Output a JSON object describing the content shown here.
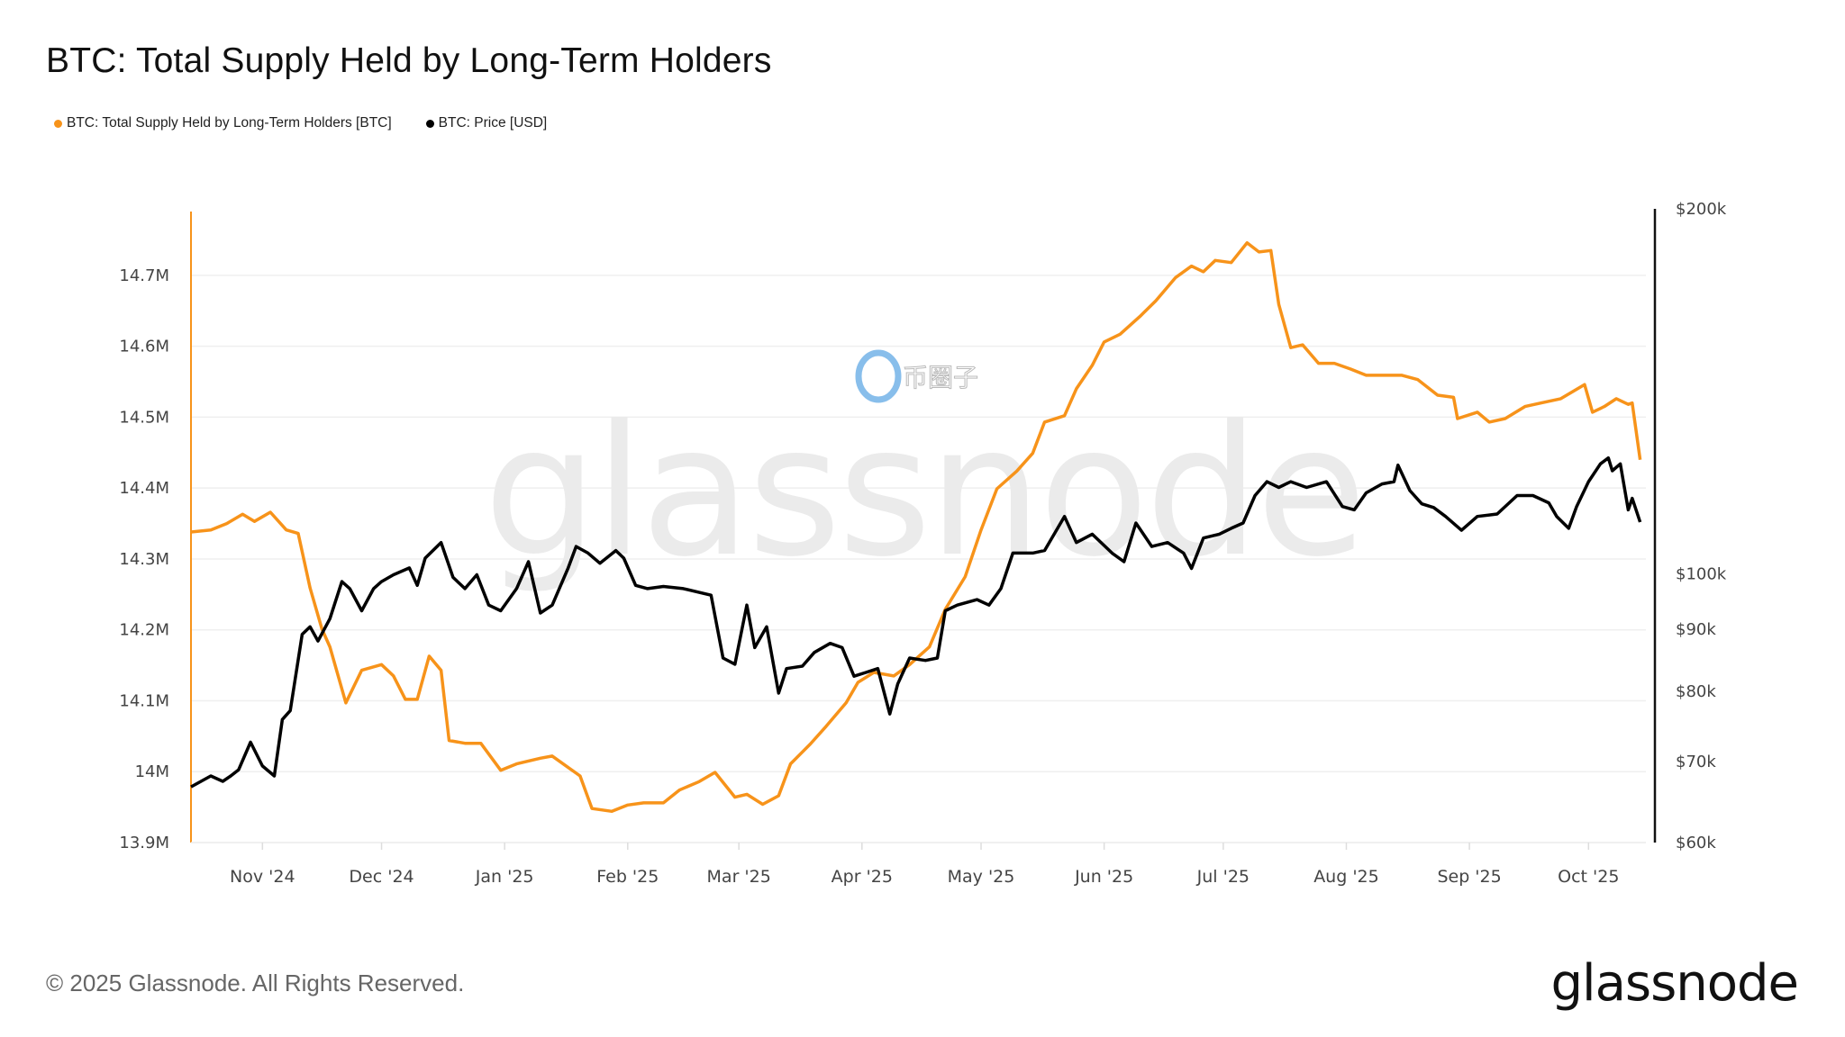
{
  "title": "BTC: Total Supply Held by Long-Term Holders",
  "legend": [
    {
      "label": "BTC: Total Supply Held by Long-Term Holders [BTC]",
      "color": "#F7931A"
    },
    {
      "label": "BTC: Price [USD]",
      "color": "#000000"
    }
  ],
  "footer": {
    "copyright": "© 2025 Glassnode. All Rights Reserved.",
    "logo": "glassnode"
  },
  "watermarks": {
    "main": "glassnode",
    "secondary": "币圈子"
  },
  "chart_data": {
    "type": "line",
    "title": "BTC: Total Supply Held by Long-Term Holders",
    "xlim": [
      "2024-10-14",
      "2025-10-15"
    ],
    "x_ticks": [
      "Nov '24",
      "Dec '24",
      "Jan '25",
      "Feb '25",
      "Mar '25",
      "Apr '25",
      "May '25",
      "Jun '25",
      "Jul '25",
      "Aug '25",
      "Sep '25",
      "Oct '25"
    ],
    "y_left": {
      "ticks": [
        "13.9M",
        "14M",
        "14.1M",
        "14.2M",
        "14.3M",
        "14.4M",
        "14.5M",
        "14.6M",
        "14.7M"
      ],
      "tick_values": [
        13.9,
        14.0,
        14.1,
        14.2,
        14.3,
        14.4,
        14.5,
        14.6,
        14.7
      ],
      "ylim": [
        13.9,
        14.79
      ],
      "unit": "M BTC",
      "scale": "linear"
    },
    "y_right": {
      "ticks": [
        "$60k",
        "$70k",
        "$80k",
        "$90k",
        "$100k",
        "$200k"
      ],
      "tick_values": [
        60,
        70,
        80,
        90,
        100,
        200
      ],
      "ylim": [
        60,
        200
      ],
      "unit": "k USD",
      "scale": "log"
    },
    "grid": true,
    "legend_position": "top-left",
    "series": [
      {
        "name": "BTC: Total Supply Held by Long-Term Holders [BTC]",
        "axis": "left",
        "color": "#F7931A",
        "points": [
          [
            "2024-10-14",
            14.338
          ],
          [
            "2024-10-19",
            14.341
          ],
          [
            "2024-10-23",
            14.35
          ],
          [
            "2024-10-27",
            14.363
          ],
          [
            "2024-10-30",
            14.353
          ],
          [
            "2024-11-03",
            14.366
          ],
          [
            "2024-11-07",
            14.341
          ],
          [
            "2024-11-10",
            14.336
          ],
          [
            "2024-11-13",
            14.259
          ],
          [
            "2024-11-16",
            14.201
          ],
          [
            "2024-11-18",
            14.176
          ],
          [
            "2024-11-22",
            14.097
          ],
          [
            "2024-11-26",
            14.143
          ],
          [
            "2024-12-01",
            14.151
          ],
          [
            "2024-12-04",
            14.135
          ],
          [
            "2024-12-07",
            14.102
          ],
          [
            "2024-12-10",
            14.102
          ],
          [
            "2024-12-13",
            14.163
          ],
          [
            "2024-12-16",
            14.143
          ],
          [
            "2024-12-18",
            14.044
          ],
          [
            "2024-12-22",
            14.04
          ],
          [
            "2024-12-26",
            14.04
          ],
          [
            "2024-12-31",
            14.002
          ],
          [
            "2025-01-04",
            14.011
          ],
          [
            "2025-01-10",
            14.019
          ],
          [
            "2025-01-13",
            14.022
          ],
          [
            "2025-01-16",
            14.01
          ],
          [
            "2025-01-20",
            13.994
          ],
          [
            "2025-01-23",
            13.948
          ],
          [
            "2025-01-28",
            13.944
          ],
          [
            "2025-02-01",
            13.953
          ],
          [
            "2025-02-05",
            13.956
          ],
          [
            "2025-02-10",
            13.956
          ],
          [
            "2025-02-14",
            13.974
          ],
          [
            "2025-02-19",
            13.986
          ],
          [
            "2025-02-23",
            13.999
          ],
          [
            "2025-02-28",
            13.964
          ],
          [
            "2025-03-03",
            13.968
          ],
          [
            "2025-03-07",
            13.954
          ],
          [
            "2025-03-11",
            13.966
          ],
          [
            "2025-03-14",
            14.011
          ],
          [
            "2025-03-19",
            14.039
          ],
          [
            "2025-03-23",
            14.064
          ],
          [
            "2025-03-28",
            14.097
          ],
          [
            "2025-03-31",
            14.126
          ],
          [
            "2025-04-04",
            14.14
          ],
          [
            "2025-04-09",
            14.135
          ],
          [
            "2025-04-13",
            14.151
          ],
          [
            "2025-04-18",
            14.176
          ],
          [
            "2025-04-22",
            14.229
          ],
          [
            "2025-04-27",
            14.275
          ],
          [
            "2025-05-01",
            14.341
          ],
          [
            "2025-05-05",
            14.399
          ],
          [
            "2025-05-10",
            14.424
          ],
          [
            "2025-05-14",
            14.449
          ],
          [
            "2025-05-17",
            14.493
          ],
          [
            "2025-05-22",
            14.502
          ],
          [
            "2025-05-25",
            14.54
          ],
          [
            "2025-05-29",
            14.573
          ],
          [
            "2025-06-01",
            14.606
          ],
          [
            "2025-06-05",
            14.617
          ],
          [
            "2025-06-10",
            14.642
          ],
          [
            "2025-06-14",
            14.664
          ],
          [
            "2025-06-19",
            14.697
          ],
          [
            "2025-06-23",
            14.713
          ],
          [
            "2025-06-26",
            14.705
          ],
          [
            "2025-06-29",
            14.721
          ],
          [
            "2025-07-03",
            14.718
          ],
          [
            "2025-07-07",
            14.746
          ],
          [
            "2025-07-10",
            14.733
          ],
          [
            "2025-07-13",
            14.735
          ],
          [
            "2025-07-15",
            14.659
          ],
          [
            "2025-07-18",
            14.598
          ],
          [
            "2025-07-21",
            14.602
          ],
          [
            "2025-07-25",
            14.576
          ],
          [
            "2025-07-29",
            14.576
          ],
          [
            "2025-08-02",
            14.568
          ],
          [
            "2025-08-06",
            14.559
          ],
          [
            "2025-08-10",
            14.559
          ],
          [
            "2025-08-15",
            14.559
          ],
          [
            "2025-08-19",
            14.553
          ],
          [
            "2025-08-24",
            14.531
          ],
          [
            "2025-08-28",
            14.528
          ],
          [
            "2025-08-29",
            14.498
          ],
          [
            "2025-09-03",
            14.507
          ],
          [
            "2025-09-06",
            14.493
          ],
          [
            "2025-09-10",
            14.498
          ],
          [
            "2025-09-15",
            14.515
          ],
          [
            "2025-09-19",
            14.52
          ],
          [
            "2025-09-24",
            14.526
          ],
          [
            "2025-09-30",
            14.546
          ],
          [
            "2025-10-02",
            14.507
          ],
          [
            "2025-10-05",
            14.515
          ],
          [
            "2025-10-08",
            14.526
          ],
          [
            "2025-10-11",
            14.518
          ],
          [
            "2025-10-12",
            14.52
          ],
          [
            "2025-10-14",
            14.44
          ]
        ]
      },
      {
        "name": "BTC: Price [USD]",
        "axis": "right",
        "color": "#000000",
        "points": [
          [
            "2024-10-14",
            66.7
          ],
          [
            "2024-10-19",
            68.1
          ],
          [
            "2024-10-22",
            67.4
          ],
          [
            "2024-10-24",
            68.1
          ],
          [
            "2024-10-26",
            68.9
          ],
          [
            "2024-10-29",
            72.6
          ],
          [
            "2024-11-01",
            69.4
          ],
          [
            "2024-11-04",
            68.1
          ],
          [
            "2024-11-06",
            75.8
          ],
          [
            "2024-11-08",
            77.1
          ],
          [
            "2024-11-11",
            89.1
          ],
          [
            "2024-11-13",
            90.4
          ],
          [
            "2024-11-15",
            88.0
          ],
          [
            "2024-11-18",
            91.8
          ],
          [
            "2024-11-21",
            98.5
          ],
          [
            "2024-11-23",
            97.2
          ],
          [
            "2024-11-26",
            93.2
          ],
          [
            "2024-11-29",
            97.2
          ],
          [
            "2024-12-01",
            98.5
          ],
          [
            "2024-12-04",
            99.8
          ],
          [
            "2024-12-08",
            101.1
          ],
          [
            "2024-12-10",
            97.8
          ],
          [
            "2024-12-12",
            103.0
          ],
          [
            "2024-12-16",
            106.1
          ],
          [
            "2024-12-19",
            99.3
          ],
          [
            "2024-12-22",
            97.2
          ],
          [
            "2024-12-25",
            99.8
          ],
          [
            "2024-12-28",
            94.2
          ],
          [
            "2024-12-31",
            93.2
          ],
          [
            "2025-01-04",
            97.2
          ],
          [
            "2025-01-07",
            102.3
          ],
          [
            "2025-01-10",
            92.8
          ],
          [
            "2025-01-13",
            94.2
          ],
          [
            "2025-01-17",
            101.1
          ],
          [
            "2025-01-19",
            105.3
          ],
          [
            "2025-01-22",
            104.0
          ],
          [
            "2025-01-25",
            102.0
          ],
          [
            "2025-01-29",
            104.5
          ],
          [
            "2025-01-31",
            103.0
          ],
          [
            "2025-02-03",
            97.8
          ],
          [
            "2025-02-06",
            97.2
          ],
          [
            "2025-02-10",
            97.6
          ],
          [
            "2025-02-15",
            97.2
          ],
          [
            "2025-02-19",
            96.5
          ],
          [
            "2025-02-22",
            96.0
          ],
          [
            "2025-02-25",
            85.2
          ],
          [
            "2025-02-28",
            84.2
          ],
          [
            "2025-03-03",
            94.2
          ],
          [
            "2025-03-05",
            86.9
          ],
          [
            "2025-03-08",
            90.4
          ],
          [
            "2025-03-11",
            79.7
          ],
          [
            "2025-03-13",
            83.5
          ],
          [
            "2025-03-17",
            83.9
          ],
          [
            "2025-03-20",
            86.1
          ],
          [
            "2025-03-24",
            87.6
          ],
          [
            "2025-03-27",
            86.9
          ],
          [
            "2025-03-30",
            82.3
          ],
          [
            "2025-04-02",
            82.9
          ],
          [
            "2025-04-05",
            83.5
          ],
          [
            "2025-04-08",
            76.6
          ],
          [
            "2025-04-10",
            81.1
          ],
          [
            "2025-04-13",
            85.2
          ],
          [
            "2025-04-17",
            84.8
          ],
          [
            "2025-04-20",
            85.2
          ],
          [
            "2025-04-22",
            93.2
          ],
          [
            "2025-04-25",
            94.2
          ],
          [
            "2025-04-30",
            95.2
          ],
          [
            "2025-05-03",
            94.2
          ],
          [
            "2025-05-06",
            97.2
          ],
          [
            "2025-05-09",
            104.0
          ],
          [
            "2025-05-14",
            104.0
          ],
          [
            "2025-05-17",
            104.5
          ],
          [
            "2025-05-22",
            111.5
          ],
          [
            "2025-05-25",
            106.1
          ],
          [
            "2025-05-29",
            107.8
          ],
          [
            "2025-06-03",
            104.0
          ],
          [
            "2025-06-06",
            102.3
          ],
          [
            "2025-06-09",
            110.1
          ],
          [
            "2025-06-13",
            105.3
          ],
          [
            "2025-06-17",
            106.1
          ],
          [
            "2025-06-21",
            104.0
          ],
          [
            "2025-06-23",
            101.0
          ],
          [
            "2025-06-26",
            107.0
          ],
          [
            "2025-06-30",
            107.8
          ],
          [
            "2025-07-03",
            109.0
          ],
          [
            "2025-07-06",
            110.1
          ],
          [
            "2025-07-09",
            116.0
          ],
          [
            "2025-07-12",
            119.1
          ],
          [
            "2025-07-15",
            117.8
          ],
          [
            "2025-07-18",
            119.1
          ],
          [
            "2025-07-22",
            117.8
          ],
          [
            "2025-07-27",
            119.1
          ],
          [
            "2025-07-31",
            113.6
          ],
          [
            "2025-08-03",
            112.9
          ],
          [
            "2025-08-06",
            116.6
          ],
          [
            "2025-08-10",
            118.6
          ],
          [
            "2025-08-13",
            119.1
          ],
          [
            "2025-08-14",
            122.9
          ],
          [
            "2025-08-17",
            117.1
          ],
          [
            "2025-08-20",
            114.2
          ],
          [
            "2025-08-23",
            113.4
          ],
          [
            "2025-08-26",
            111.5
          ],
          [
            "2025-08-30",
            108.6
          ],
          [
            "2025-09-03",
            111.5
          ],
          [
            "2025-09-08",
            112.0
          ],
          [
            "2025-09-13",
            116.0
          ],
          [
            "2025-09-17",
            116.0
          ],
          [
            "2025-09-21",
            114.4
          ],
          [
            "2025-09-23",
            111.5
          ],
          [
            "2025-09-26",
            109.0
          ],
          [
            "2025-09-28",
            113.6
          ],
          [
            "2025-10-01",
            119.1
          ],
          [
            "2025-10-04",
            123.2
          ],
          [
            "2025-10-06",
            124.6
          ],
          [
            "2025-10-07",
            121.6
          ],
          [
            "2025-10-09",
            123.2
          ],
          [
            "2025-10-11",
            112.9
          ],
          [
            "2025-10-12",
            115.4
          ],
          [
            "2025-10-14",
            110.3
          ]
        ]
      }
    ]
  }
}
